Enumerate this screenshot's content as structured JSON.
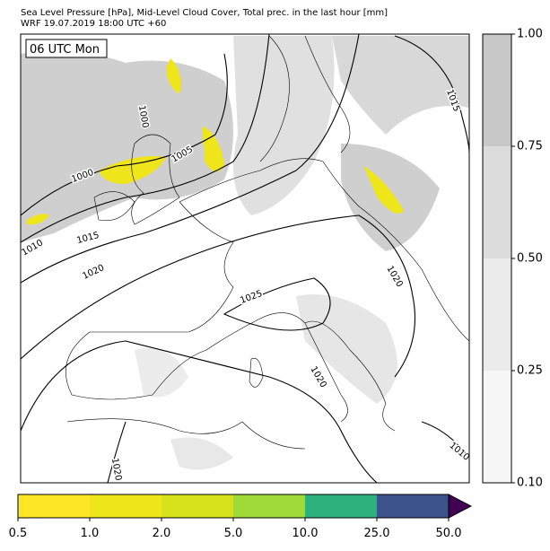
{
  "header": {
    "title": "Sea Level Pressure [hPa], Mid-Level Cloud Cover, Total prec. in the last hour [mm]",
    "subtitle": "WRF 19.07.2019 18:00 UTC +60"
  },
  "time_label": "06 UTC Mon",
  "contour_labels": [
    "1000",
    "1005",
    "1000",
    "1010",
    "1015",
    "1020",
    "1025",
    "1020",
    "1015",
    "1020",
    "1010",
    "1020"
  ],
  "cloud_colorbar": {
    "ticks": [
      "0.10",
      "0.25",
      "0.50",
      "0.75",
      "1.00"
    ],
    "colors": [
      "#f7f7f7",
      "#ebebeb",
      "#dcdcdc",
      "#c8c8c8"
    ]
  },
  "precip_colorbar": {
    "ticks": [
      "0.5",
      "1.0",
      "2.0",
      "5.0",
      "10.0",
      "25.0",
      "50.0"
    ],
    "colors": [
      "#fde725",
      "#eee51b",
      "#d5e21a",
      "#a0da39",
      "#2db27d",
      "#3b528b"
    ],
    "extend_color": "#440154"
  }
}
